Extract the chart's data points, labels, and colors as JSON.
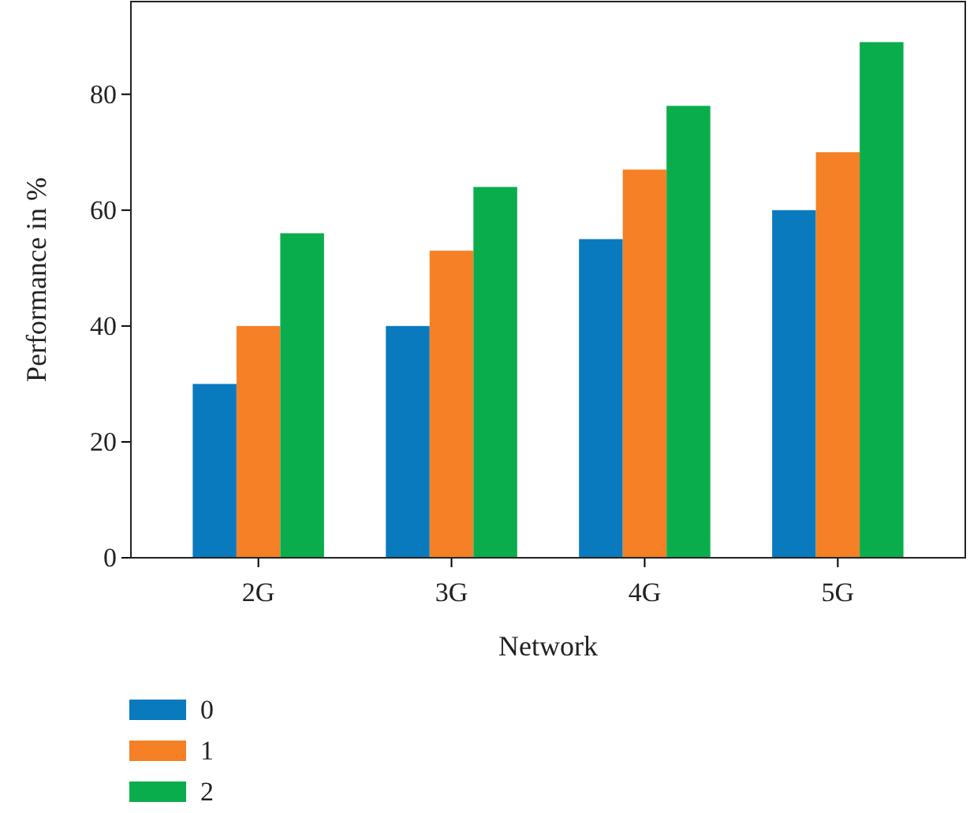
{
  "chart_data": {
    "type": "bar",
    "xlabel": "Network",
    "ylabel": "Performance in %",
    "categories": [
      "2G",
      "3G",
      "4G",
      "5G"
    ],
    "series": [
      {
        "name": "0",
        "color": "#0a7abf",
        "values": [
          30,
          40,
          55,
          60
        ]
      },
      {
        "name": "1",
        "color": "#f58025",
        "values": [
          40,
          53,
          67,
          70
        ]
      },
      {
        "name": "2",
        "color": "#0aad4b",
        "values": [
          56,
          64,
          78,
          89
        ]
      }
    ],
    "ylim": [
      0,
      96
    ],
    "yticks": [
      0,
      20,
      40,
      60,
      80
    ],
    "grid": false,
    "legend": "bottom left"
  }
}
